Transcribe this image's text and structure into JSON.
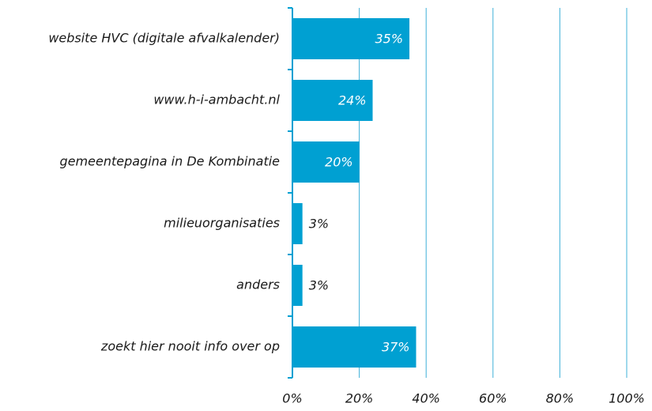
{
  "chart_data": {
    "type": "bar",
    "orientation": "horizontal",
    "categories": [
      "website HVC (digitale afvalkalender)",
      "www.h-i-ambacht.nl",
      "gemeentepagina in De Kombinatie",
      "milieuorganisaties",
      "anders",
      "zoekt hier nooit info over op"
    ],
    "values": [
      35,
      24,
      20,
      3,
      3,
      37
    ],
    "value_labels": [
      "35%",
      "24%",
      "20%",
      "3%",
      "3%",
      "37%"
    ],
    "color": "#00a0d2",
    "xlim": [
      0,
      100
    ],
    "xticks": [
      {
        "value": 0,
        "label": "0%"
      },
      {
        "value": 20,
        "label": "20%"
      },
      {
        "value": 40,
        "label": "40%"
      },
      {
        "value": 60,
        "label": "60%"
      },
      {
        "value": 80,
        "label": "80%"
      },
      {
        "value": 100,
        "label": "100%"
      }
    ],
    "grid": true
  }
}
